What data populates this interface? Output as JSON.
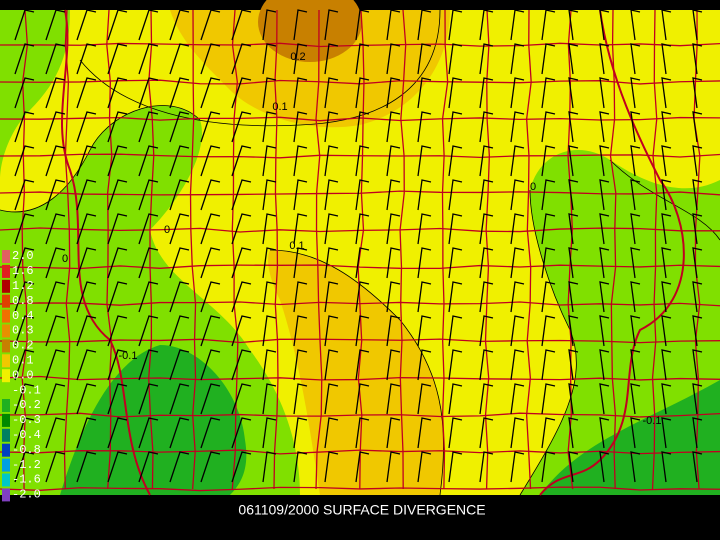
{
  "title": "061109/2000 SURFACE DIVERGENCE",
  "legend": [
    {
      "label": "2.0",
      "color": "#e06060"
    },
    {
      "label": "1.6",
      "color": "#e02020"
    },
    {
      "label": "1.2",
      "color": "#b00000"
    },
    {
      "label": "0.8",
      "color": "#e04000"
    },
    {
      "label": "0.4",
      "color": "#f07000"
    },
    {
      "label": "0.3",
      "color": "#e89000"
    },
    {
      "label": "0.2",
      "color": "#c88000"
    },
    {
      "label": "0.1",
      "color": "#f0c800"
    },
    {
      "label": "0.0",
      "color": "#f0f000"
    },
    {
      "label": "-0.1",
      "color": "#80e000"
    },
    {
      "label": "-0.2",
      "color": "#20b020"
    },
    {
      "label": "-0.3",
      "color": "#008800"
    },
    {
      "label": "-0.4",
      "color": "#008060"
    },
    {
      "label": "-0.8",
      "color": "#0040c0"
    },
    {
      "label": "-1.2",
      "color": "#00a0e0"
    },
    {
      "label": "-1.6",
      "color": "#00c8c8"
    },
    {
      "label": "-2.0",
      "color": "#8040c0"
    }
  ],
  "contour_labels": [
    "0.2",
    "0.1",
    "0.1",
    "0",
    "0",
    "0",
    "-0.1",
    "-0.1"
  ]
}
